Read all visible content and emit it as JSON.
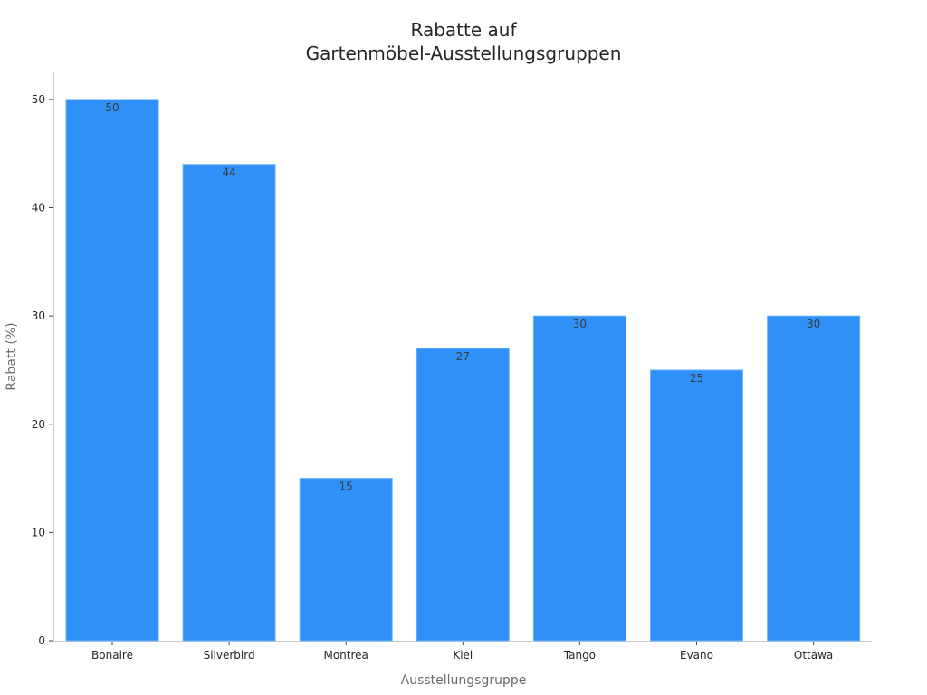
{
  "chart_data": {
    "type": "bar",
    "title": [
      "Rabatte auf",
      "Gartenmöbel-Ausstellungsgruppen"
    ],
    "xlabel": "Ausstellungsgruppe",
    "ylabel": "Rabatt (%)",
    "categories": [
      "Bonaire",
      "Silverbird",
      "Montrea",
      "Kiel",
      "Tango",
      "Evano",
      "Ottawa"
    ],
    "values": [
      50,
      44,
      15,
      27,
      30,
      25,
      30
    ],
    "data_labels": [
      "50",
      "44",
      "15",
      "27",
      "30",
      "25",
      "30"
    ],
    "ylim": [
      0,
      52.5
    ],
    "yticks": [
      0,
      10,
      20,
      30,
      40,
      50
    ],
    "grid": false,
    "legend": "none",
    "bar_color": "#2f91f8"
  }
}
